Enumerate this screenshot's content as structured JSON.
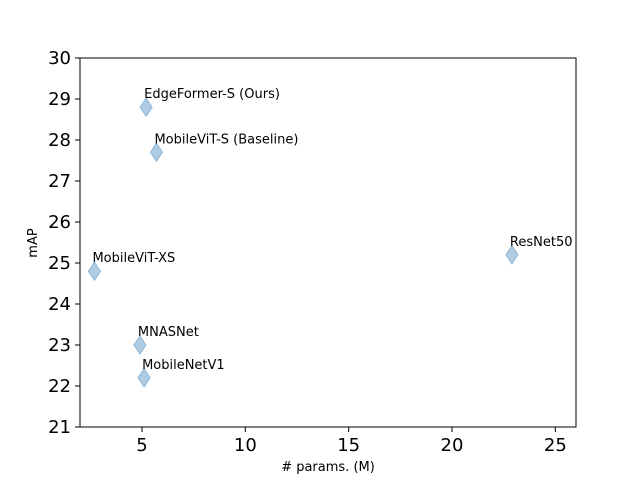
{
  "chart_data": {
    "type": "scatter",
    "title": "",
    "xlabel": "# params. (M)",
    "ylabel": "mAP",
    "xlim": [
      2,
      26
    ],
    "ylim": [
      21,
      30
    ],
    "xticks": [
      5,
      10,
      15,
      20,
      25
    ],
    "yticks": [
      21,
      22,
      23,
      24,
      25,
      26,
      27,
      28,
      29,
      30
    ],
    "grid": false,
    "marker": "diamond",
    "marker_color": "#aecde5",
    "marker_edge": "#8fb6d6",
    "points": [
      {
        "label": "EdgeFormer-S (Ours)",
        "x": 5.2,
        "y": 28.8
      },
      {
        "label": "MobileViT-S (Baseline)",
        "x": 5.7,
        "y": 27.7
      },
      {
        "label": "ResNet50",
        "x": 22.9,
        "y": 25.2
      },
      {
        "label": "MobileViT-XS",
        "x": 2.7,
        "y": 24.8
      },
      {
        "label": "MNASNet",
        "x": 4.9,
        "y": 23.0
      },
      {
        "label": "MobileNetV1",
        "x": 5.1,
        "y": 22.2
      }
    ]
  }
}
